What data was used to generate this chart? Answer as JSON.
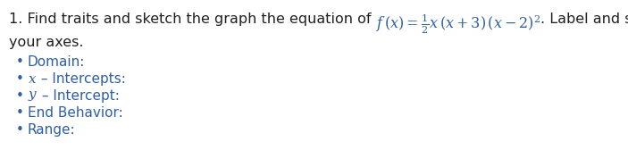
{
  "background_color": "#ffffff",
  "text_color_black": "#231f20",
  "text_color_blue": "#2e5fa3",
  "bullet_color": "#2e5fa3",
  "line1_prefix": "1. Find traits and sketch the graph the equation of ",
  "line1_formula": "$f\\,(x) = \\frac{1}{2}x\\,(x+3)\\,(x-2)^2$",
  "line1_suffix": ". Label and scale",
  "line2": "your axes.",
  "bullet_items": [
    "Domain:",
    "x – Intercepts:",
    "y – Intercept:",
    "End Behavior:",
    "Range:"
  ],
  "fontsize_main": 11.5,
  "fontsize_bullet": 11.0,
  "fig_width": 7.03,
  "fig_height": 1.87,
  "dpi": 100
}
